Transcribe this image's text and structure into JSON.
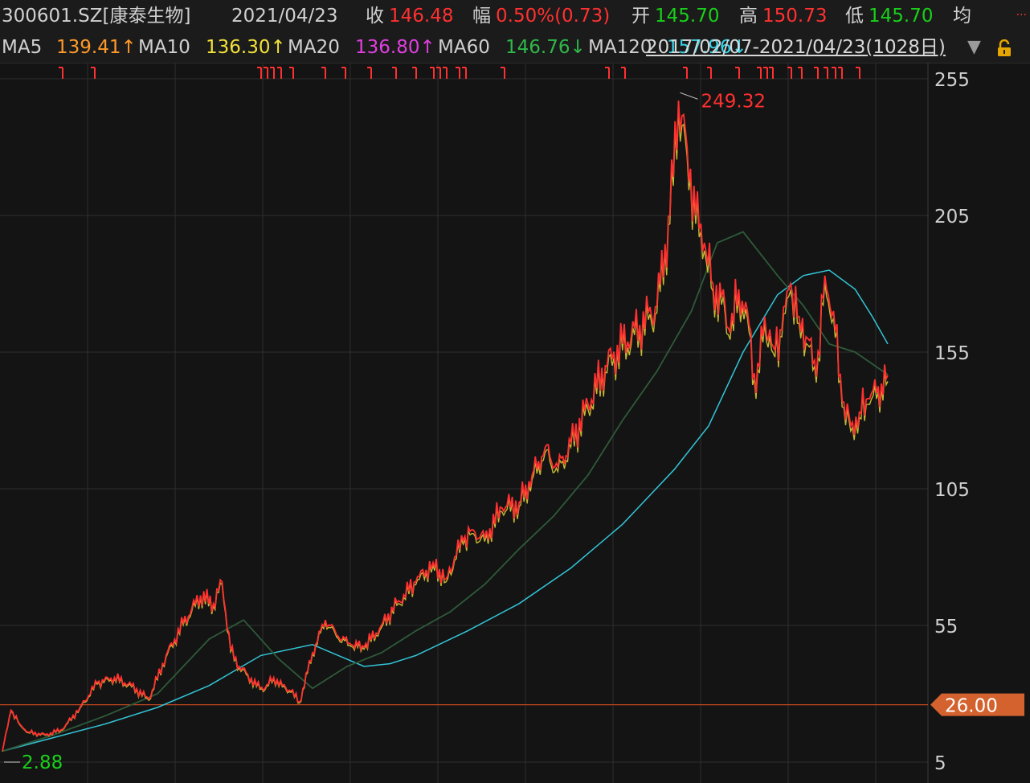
{
  "header": {
    "code": "300601.SZ[康泰生物]",
    "date": "2021/04/23",
    "close_label": "收",
    "close_value": "146.48",
    "change_label": "幅",
    "change_value": "0.50%(0.73)",
    "open_label": "开",
    "open_value": "145.70",
    "high_label": "高",
    "high_value": "150.73",
    "low_label": "低",
    "low_value": "145.70",
    "avg_label": "均",
    "dots": "..."
  },
  "ma_row": {
    "ma5_label": "MA5",
    "ma5_value": "139.41↑",
    "ma10_label": "MA10",
    "ma10_value": "136.30↑",
    "ma20_label": "MA20",
    "ma20_value": "136.80↑",
    "ma60_label": "MA60",
    "ma60_value": "146.76↓",
    "ma120_label": "MA120",
    "ma120_value": "157.96↓",
    "range_text": "2017/02/07-2021/04/23(1028日)",
    "dropdown_glyph": "▼"
  },
  "colors": {
    "background": "#141414",
    "grid": "#2e2e2e",
    "up": "#ff3030",
    "down": "#19d019",
    "ma5": "#ff9a2a",
    "ma10": "#f2e23a",
    "ma20": "#e040e0",
    "ma60": "#2e5a3a",
    "ma120": "#33c4d6",
    "ref_line": "#c0461e"
  },
  "chart_data": {
    "type": "line",
    "y_axis_side": "right",
    "y_ticks": [
      5,
      55,
      105,
      155,
      205,
      255
    ],
    "y_tick_labels": [
      "5",
      "55",
      "105",
      "155",
      "205",
      "255"
    ],
    "ylim": [
      5,
      255
    ],
    "x_range": [
      "2017/02/07",
      "2021/04/23"
    ],
    "trading_days": 1028,
    "grid": true,
    "reference_line": {
      "value": 26.0,
      "label": "26.00"
    },
    "annotations": [
      {
        "label": "249.32",
        "value": 249.32,
        "kind": "max"
      },
      {
        "label": "2.88",
        "value": 2.88,
        "kind": "min"
      }
    ],
    "series": [
      {
        "name": "close",
        "x": [
          0,
          10,
          20,
          30,
          50,
          70,
          90,
          110,
          130,
          150,
          170,
          190,
          210,
          230,
          245,
          255,
          265,
          275,
          285,
          295,
          305,
          315,
          325,
          335,
          345,
          360,
          375,
          390,
          405,
          420,
          440,
          460,
          480,
          500,
          515,
          525,
          535,
          545,
          560,
          580,
          600,
          615,
          630,
          645,
          660,
          680,
          700,
          720,
          740,
          760,
          775,
          785,
          795,
          805,
          815,
          825,
          835,
          845,
          855,
          865,
          875,
          885,
          895,
          905,
          915,
          925,
          935,
          945,
          955,
          965,
          975,
          985,
          995,
          1005,
          1015,
          1028
        ],
        "values": [
          9,
          24,
          19,
          16,
          15,
          17,
          25,
          34,
          36,
          33,
          28,
          44,
          56,
          66,
          63,
          71,
          46,
          40,
          37,
          33,
          32,
          36,
          33,
          31,
          27,
          45,
          57,
          51,
          48,
          47,
          55,
          64,
          71,
          78,
          72,
          80,
          86,
          90,
          87,
          98,
          100,
          110,
          120,
          113,
          122,
          136,
          150,
          158,
          165,
          172,
          205,
          247,
          230,
          205,
          195,
          180,
          175,
          162,
          178,
          170,
          140,
          168,
          157,
          163,
          180,
          168,
          160,
          146,
          183,
          170,
          137,
          128,
          133,
          138,
          140,
          146.48
        ]
      },
      {
        "name": "MA60",
        "x": [
          0,
          60,
          120,
          180,
          240,
          280,
          320,
          360,
          400,
          440,
          480,
          520,
          560,
          600,
          640,
          680,
          720,
          760,
          800,
          830,
          860,
          900,
          930,
          960,
          990,
          1028
        ],
        "values": [
          9,
          15,
          22,
          30,
          50,
          57,
          43,
          32,
          40,
          45,
          53,
          60,
          70,
          83,
          95,
          110,
          130,
          148,
          170,
          195,
          199,
          183,
          172,
          158,
          155,
          146.76
        ]
      },
      {
        "name": "MA120",
        "x": [
          0,
          60,
          120,
          180,
          240,
          300,
          360,
          390,
          420,
          450,
          480,
          540,
          600,
          660,
          720,
          780,
          820,
          860,
          900,
          930,
          960,
          990,
          1010,
          1028
        ],
        "values": [
          9,
          14,
          19,
          25,
          33,
          44,
          48,
          44,
          40,
          41,
          44,
          53,
          63,
          76,
          92,
          112,
          128,
          155,
          176,
          183,
          185,
          178,
          168,
          157.96
        ]
      }
    ]
  }
}
